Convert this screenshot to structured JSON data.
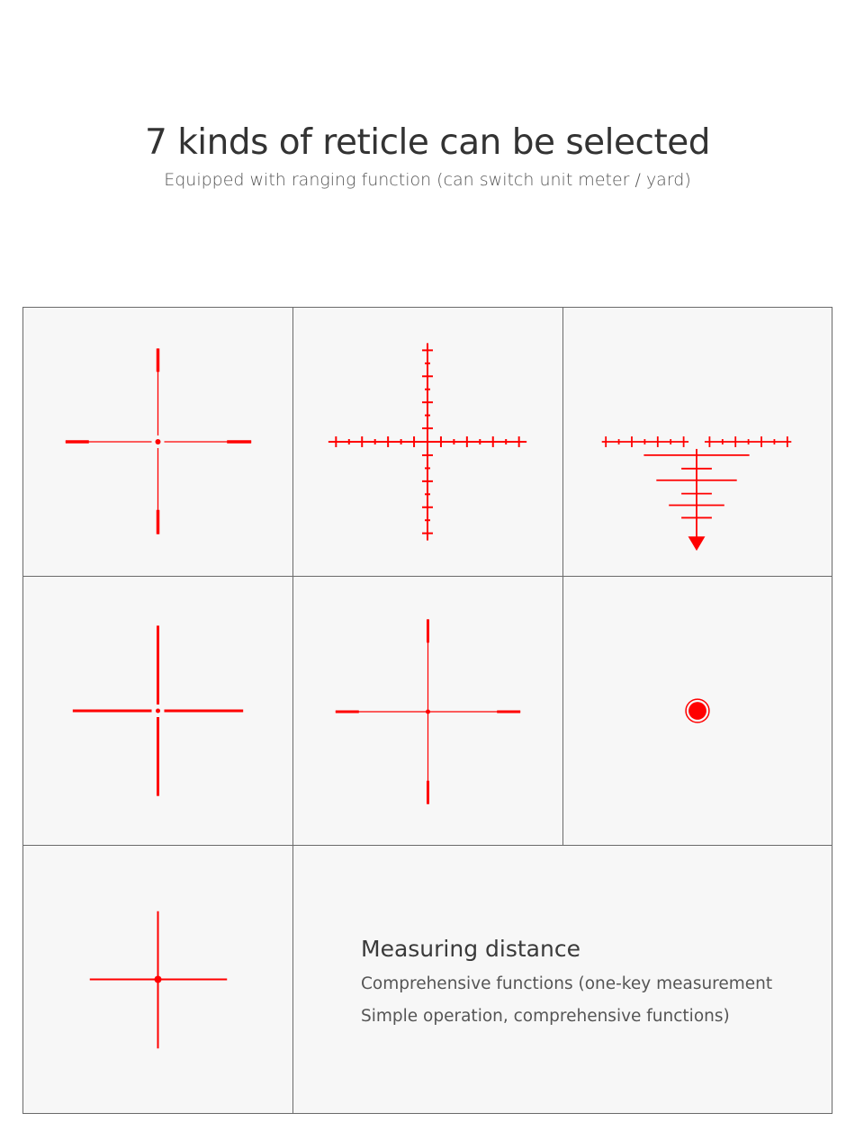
{
  "header": {
    "title": "7 kinds of reticle can be selected",
    "subtitle": "Equipped with ranging function (can switch unit meter / yard)"
  },
  "reticles": [
    {
      "name": "duplex-dot"
    },
    {
      "name": "mil-dot-cross"
    },
    {
      "name": "ballistic-drop"
    },
    {
      "name": "heavy-cross"
    },
    {
      "name": "duplex-thin"
    },
    {
      "name": "red-dot"
    },
    {
      "name": "simple-cross"
    }
  ],
  "info": {
    "heading": "Measuring distance",
    "line1": "Comprehensive functions (one-key measurement",
    "line2": "Simple operation, comprehensive functions)"
  },
  "colors": {
    "reticle": "#ff0000",
    "cell_bg": "#f7f7f7",
    "border": "#6a6a6a"
  }
}
